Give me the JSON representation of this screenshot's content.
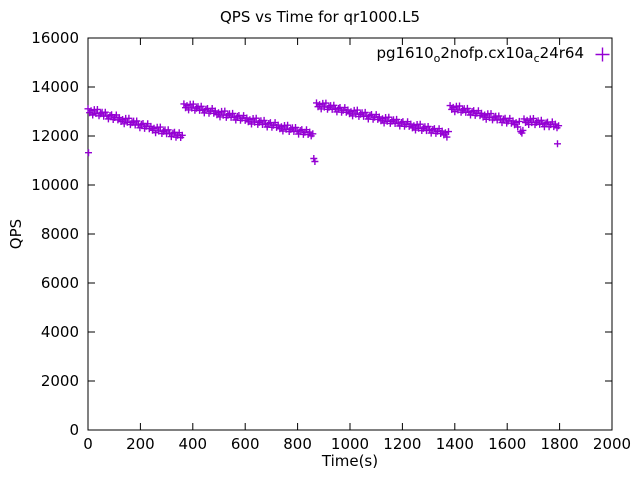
{
  "chart_data": {
    "type": "scatter",
    "title": "QPS vs Time for qr1000.L5",
    "xlabel": "Time(s)",
    "ylabel": "QPS",
    "xlim": [
      0,
      2000
    ],
    "ylim": [
      0,
      16000
    ],
    "xticks": [
      0,
      200,
      400,
      600,
      800,
      1000,
      1200,
      1400,
      1600,
      1800,
      2000
    ],
    "yticks": [
      0,
      2000,
      4000,
      6000,
      8000,
      10000,
      12000,
      14000,
      16000
    ],
    "grid": false,
    "legend_position": "top-right-inside",
    "marker": "plus",
    "series": [
      {
        "name": "pg1610_o2nofp.cx10a_c24r64",
        "label_parts": [
          {
            "t": "pg1610",
            "sub": false
          },
          {
            "t": "o",
            "sub": true
          },
          {
            "t": "2nofp.cx10a",
            "sub": false
          },
          {
            "t": "c",
            "sub": true
          },
          {
            "t": "24r64",
            "sub": false
          }
        ],
        "color": "#9400D3",
        "points": [
          [
            0,
            13110
          ],
          [
            2,
            11320
          ],
          [
            6,
            12952
          ],
          [
            12,
            13034
          ],
          [
            18,
            12856
          ],
          [
            24,
            13078
          ],
          [
            30,
            12920
          ],
          [
            36,
            13082
          ],
          [
            42,
            12824
          ],
          [
            48,
            12906
          ],
          [
            54,
            12968
          ],
          [
            60,
            12810
          ],
          [
            66,
            12972
          ],
          [
            72,
            12814
          ],
          [
            78,
            12696
          ],
          [
            84,
            12838
          ],
          [
            90,
            12870
          ],
          [
            96,
            12672
          ],
          [
            102,
            12754
          ],
          [
            108,
            12856
          ],
          [
            114,
            12658
          ],
          [
            120,
            12750
          ],
          [
            126,
            12592
          ],
          [
            132,
            12674
          ],
          [
            138,
            12496
          ],
          [
            144,
            12718
          ],
          [
            150,
            12560
          ],
          [
            156,
            12722
          ],
          [
            162,
            12464
          ],
          [
            168,
            12546
          ],
          [
            174,
            12608
          ],
          [
            180,
            12450
          ],
          [
            186,
            12612
          ],
          [
            192,
            12454
          ],
          [
            198,
            12336
          ],
          [
            204,
            12478
          ],
          [
            210,
            12510
          ],
          [
            216,
            12312
          ],
          [
            222,
            12394
          ],
          [
            228,
            12496
          ],
          [
            234,
            12298
          ],
          [
            240,
            12390
          ],
          [
            246,
            12232
          ],
          [
            252,
            12314
          ],
          [
            258,
            12136
          ],
          [
            264,
            12358
          ],
          [
            270,
            12200
          ],
          [
            276,
            12362
          ],
          [
            282,
            12104
          ],
          [
            288,
            12186
          ],
          [
            294,
            12248
          ],
          [
            300,
            12090
          ],
          [
            306,
            12252
          ],
          [
            312,
            12094
          ],
          [
            318,
            11976
          ],
          [
            324,
            12118
          ],
          [
            330,
            12150
          ],
          [
            336,
            11952
          ],
          [
            342,
            12034
          ],
          [
            348,
            12136
          ],
          [
            354,
            11938
          ],
          [
            360,
            12030
          ],
          [
            366,
            13310
          ],
          [
            372,
            13156
          ],
          [
            378,
            13241
          ],
          [
            384,
            13067
          ],
          [
            390,
            13292
          ],
          [
            396,
            13138
          ],
          [
            402,
            13304
          ],
          [
            408,
            13049
          ],
          [
            414,
            13135
          ],
          [
            420,
            13200
          ],
          [
            426,
            13046
          ],
          [
            432,
            13212
          ],
          [
            438,
            13057
          ],
          [
            444,
            12943
          ],
          [
            450,
            13088
          ],
          [
            456,
            13124
          ],
          [
            462,
            12930
          ],
          [
            468,
            13015
          ],
          [
            474,
            13121
          ],
          [
            480,
            12926
          ],
          [
            486,
            13022
          ],
          [
            492,
            12868
          ],
          [
            498,
            12953
          ],
          [
            504,
            12779
          ],
          [
            510,
            13004
          ],
          [
            516,
            12850
          ],
          [
            522,
            13016
          ],
          [
            528,
            12761
          ],
          [
            534,
            12847
          ],
          [
            540,
            12912
          ],
          [
            546,
            12758
          ],
          [
            552,
            12924
          ],
          [
            558,
            12769
          ],
          [
            564,
            12655
          ],
          [
            570,
            12800
          ],
          [
            576,
            12836
          ],
          [
            582,
            12642
          ],
          [
            588,
            12727
          ],
          [
            594,
            12833
          ],
          [
            600,
            12638
          ],
          [
            606,
            12734
          ],
          [
            612,
            12580
          ],
          [
            618,
            12665
          ],
          [
            624,
            12491
          ],
          [
            630,
            12716
          ],
          [
            636,
            12562
          ],
          [
            642,
            12728
          ],
          [
            648,
            12473
          ],
          [
            654,
            12559
          ],
          [
            660,
            12624
          ],
          [
            666,
            12470
          ],
          [
            672,
            12636
          ],
          [
            678,
            12481
          ],
          [
            684,
            12367
          ],
          [
            690,
            12512
          ],
          [
            696,
            12548
          ],
          [
            702,
            12354
          ],
          [
            708,
            12439
          ],
          [
            714,
            12545
          ],
          [
            720,
            12350
          ],
          [
            726,
            12446
          ],
          [
            732,
            12292
          ],
          [
            738,
            12377
          ],
          [
            744,
            12203
          ],
          [
            750,
            12428
          ],
          [
            756,
            12274
          ],
          [
            762,
            12440
          ],
          [
            768,
            12185
          ],
          [
            774,
            12271
          ],
          [
            780,
            12336
          ],
          [
            786,
            12182
          ],
          [
            792,
            12348
          ],
          [
            798,
            12193
          ],
          [
            804,
            12079
          ],
          [
            810,
            12224
          ],
          [
            816,
            12260
          ],
          [
            822,
            12066
          ],
          [
            828,
            12151
          ],
          [
            834,
            12257
          ],
          [
            840,
            12062
          ],
          [
            846,
            12158
          ],
          [
            852,
            12004
          ],
          [
            858,
            12089
          ],
          [
            862,
            11080
          ],
          [
            866,
            10960
          ],
          [
            872,
            13350
          ],
          [
            878,
            13196
          ],
          [
            884,
            13281
          ],
          [
            890,
            13107
          ],
          [
            896,
            13332
          ],
          [
            902,
            13178
          ],
          [
            908,
            13344
          ],
          [
            914,
            13089
          ],
          [
            920,
            13175
          ],
          [
            926,
            13240
          ],
          [
            932,
            13086
          ],
          [
            938,
            13252
          ],
          [
            944,
            13097
          ],
          [
            950,
            12983
          ],
          [
            956,
            13128
          ],
          [
            962,
            13164
          ],
          [
            968,
            12970
          ],
          [
            974,
            13055
          ],
          [
            980,
            13161
          ],
          [
            986,
            12966
          ],
          [
            992,
            13062
          ],
          [
            998,
            12908
          ],
          [
            1004,
            12993
          ],
          [
            1010,
            12819
          ],
          [
            1016,
            13044
          ],
          [
            1022,
            12890
          ],
          [
            1028,
            13056
          ],
          [
            1034,
            12801
          ],
          [
            1040,
            12887
          ],
          [
            1046,
            12952
          ],
          [
            1052,
            12798
          ],
          [
            1058,
            12964
          ],
          [
            1064,
            12809
          ],
          [
            1070,
            12695
          ],
          [
            1076,
            12840
          ],
          [
            1082,
            12876
          ],
          [
            1088,
            12682
          ],
          [
            1094,
            12767
          ],
          [
            1100,
            12873
          ],
          [
            1106,
            12678
          ],
          [
            1112,
            12774
          ],
          [
            1118,
            12620
          ],
          [
            1124,
            12705
          ],
          [
            1130,
            12531
          ],
          [
            1136,
            12756
          ],
          [
            1142,
            12602
          ],
          [
            1148,
            12768
          ],
          [
            1154,
            12513
          ],
          [
            1160,
            12599
          ],
          [
            1166,
            12664
          ],
          [
            1172,
            12510
          ],
          [
            1178,
            12676
          ],
          [
            1184,
            12521
          ],
          [
            1190,
            12407
          ],
          [
            1196,
            12552
          ],
          [
            1202,
            12588
          ],
          [
            1208,
            12394
          ],
          [
            1214,
            12479
          ],
          [
            1220,
            12585
          ],
          [
            1226,
            12390
          ],
          [
            1232,
            12486
          ],
          [
            1238,
            12332
          ],
          [
            1244,
            12417
          ],
          [
            1250,
            12243
          ],
          [
            1256,
            12468
          ],
          [
            1262,
            12314
          ],
          [
            1268,
            12480
          ],
          [
            1274,
            12225
          ],
          [
            1280,
            12311
          ],
          [
            1286,
            12376
          ],
          [
            1292,
            12222
          ],
          [
            1298,
            12388
          ],
          [
            1304,
            12233
          ],
          [
            1310,
            12119
          ],
          [
            1316,
            12264
          ],
          [
            1322,
            12300
          ],
          [
            1328,
            12106
          ],
          [
            1334,
            12191
          ],
          [
            1340,
            12297
          ],
          [
            1346,
            12102
          ],
          [
            1352,
            12198
          ],
          [
            1358,
            12044
          ],
          [
            1364,
            12129
          ],
          [
            1370,
            11955
          ],
          [
            1376,
            12180
          ],
          [
            1382,
            13240
          ],
          [
            1388,
            13084
          ],
          [
            1394,
            13169
          ],
          [
            1400,
            12993
          ],
          [
            1406,
            13218
          ],
          [
            1412,
            13062
          ],
          [
            1418,
            13226
          ],
          [
            1424,
            12971
          ],
          [
            1430,
            13055
          ],
          [
            1436,
            13120
          ],
          [
            1442,
            12964
          ],
          [
            1448,
            13128
          ],
          [
            1454,
            12973
          ],
          [
            1460,
            12857
          ],
          [
            1466,
            13002
          ],
          [
            1472,
            13036
          ],
          [
            1478,
            12840
          ],
          [
            1484,
            12925
          ],
          [
            1490,
            13029
          ],
          [
            1496,
            12834
          ],
          [
            1502,
            12928
          ],
          [
            1508,
            12772
          ],
          [
            1514,
            12857
          ],
          [
            1520,
            12681
          ],
          [
            1526,
            12906
          ],
          [
            1532,
            12750
          ],
          [
            1538,
            12914
          ],
          [
            1544,
            12659
          ],
          [
            1550,
            12743
          ],
          [
            1556,
            12808
          ],
          [
            1562,
            12652
          ],
          [
            1568,
            12816
          ],
          [
            1574,
            12661
          ],
          [
            1580,
            12545
          ],
          [
            1586,
            12690
          ],
          [
            1592,
            12724
          ],
          [
            1598,
            12528
          ],
          [
            1604,
            12613
          ],
          [
            1610,
            12717
          ],
          [
            1616,
            12522
          ],
          [
            1622,
            12616
          ],
          [
            1628,
            12460
          ],
          [
            1634,
            12545
          ],
          [
            1640,
            12369
          ],
          [
            1646,
            12594
          ],
          [
            1652,
            12180
          ],
          [
            1656,
            12120
          ],
          [
            1660,
            12230
          ],
          [
            1664,
            12700
          ],
          [
            1670,
            12549
          ],
          [
            1676,
            12638
          ],
          [
            1682,
            12468
          ],
          [
            1688,
            12697
          ],
          [
            1694,
            12546
          ],
          [
            1700,
            12715
          ],
          [
            1706,
            12464
          ],
          [
            1712,
            12554
          ],
          [
            1718,
            12623
          ],
          [
            1724,
            12472
          ],
          [
            1730,
            12641
          ],
          [
            1736,
            12490
          ],
          [
            1742,
            12380
          ],
          [
            1748,
            12529
          ],
          [
            1754,
            12568
          ],
          [
            1760,
            12377
          ],
          [
            1766,
            12466
          ],
          [
            1772,
            12576
          ],
          [
            1778,
            12385
          ],
          [
            1784,
            12484
          ],
          [
            1790,
            12333
          ],
          [
            1792,
            11680
          ],
          [
            1796,
            12422
          ]
        ]
      }
    ]
  }
}
